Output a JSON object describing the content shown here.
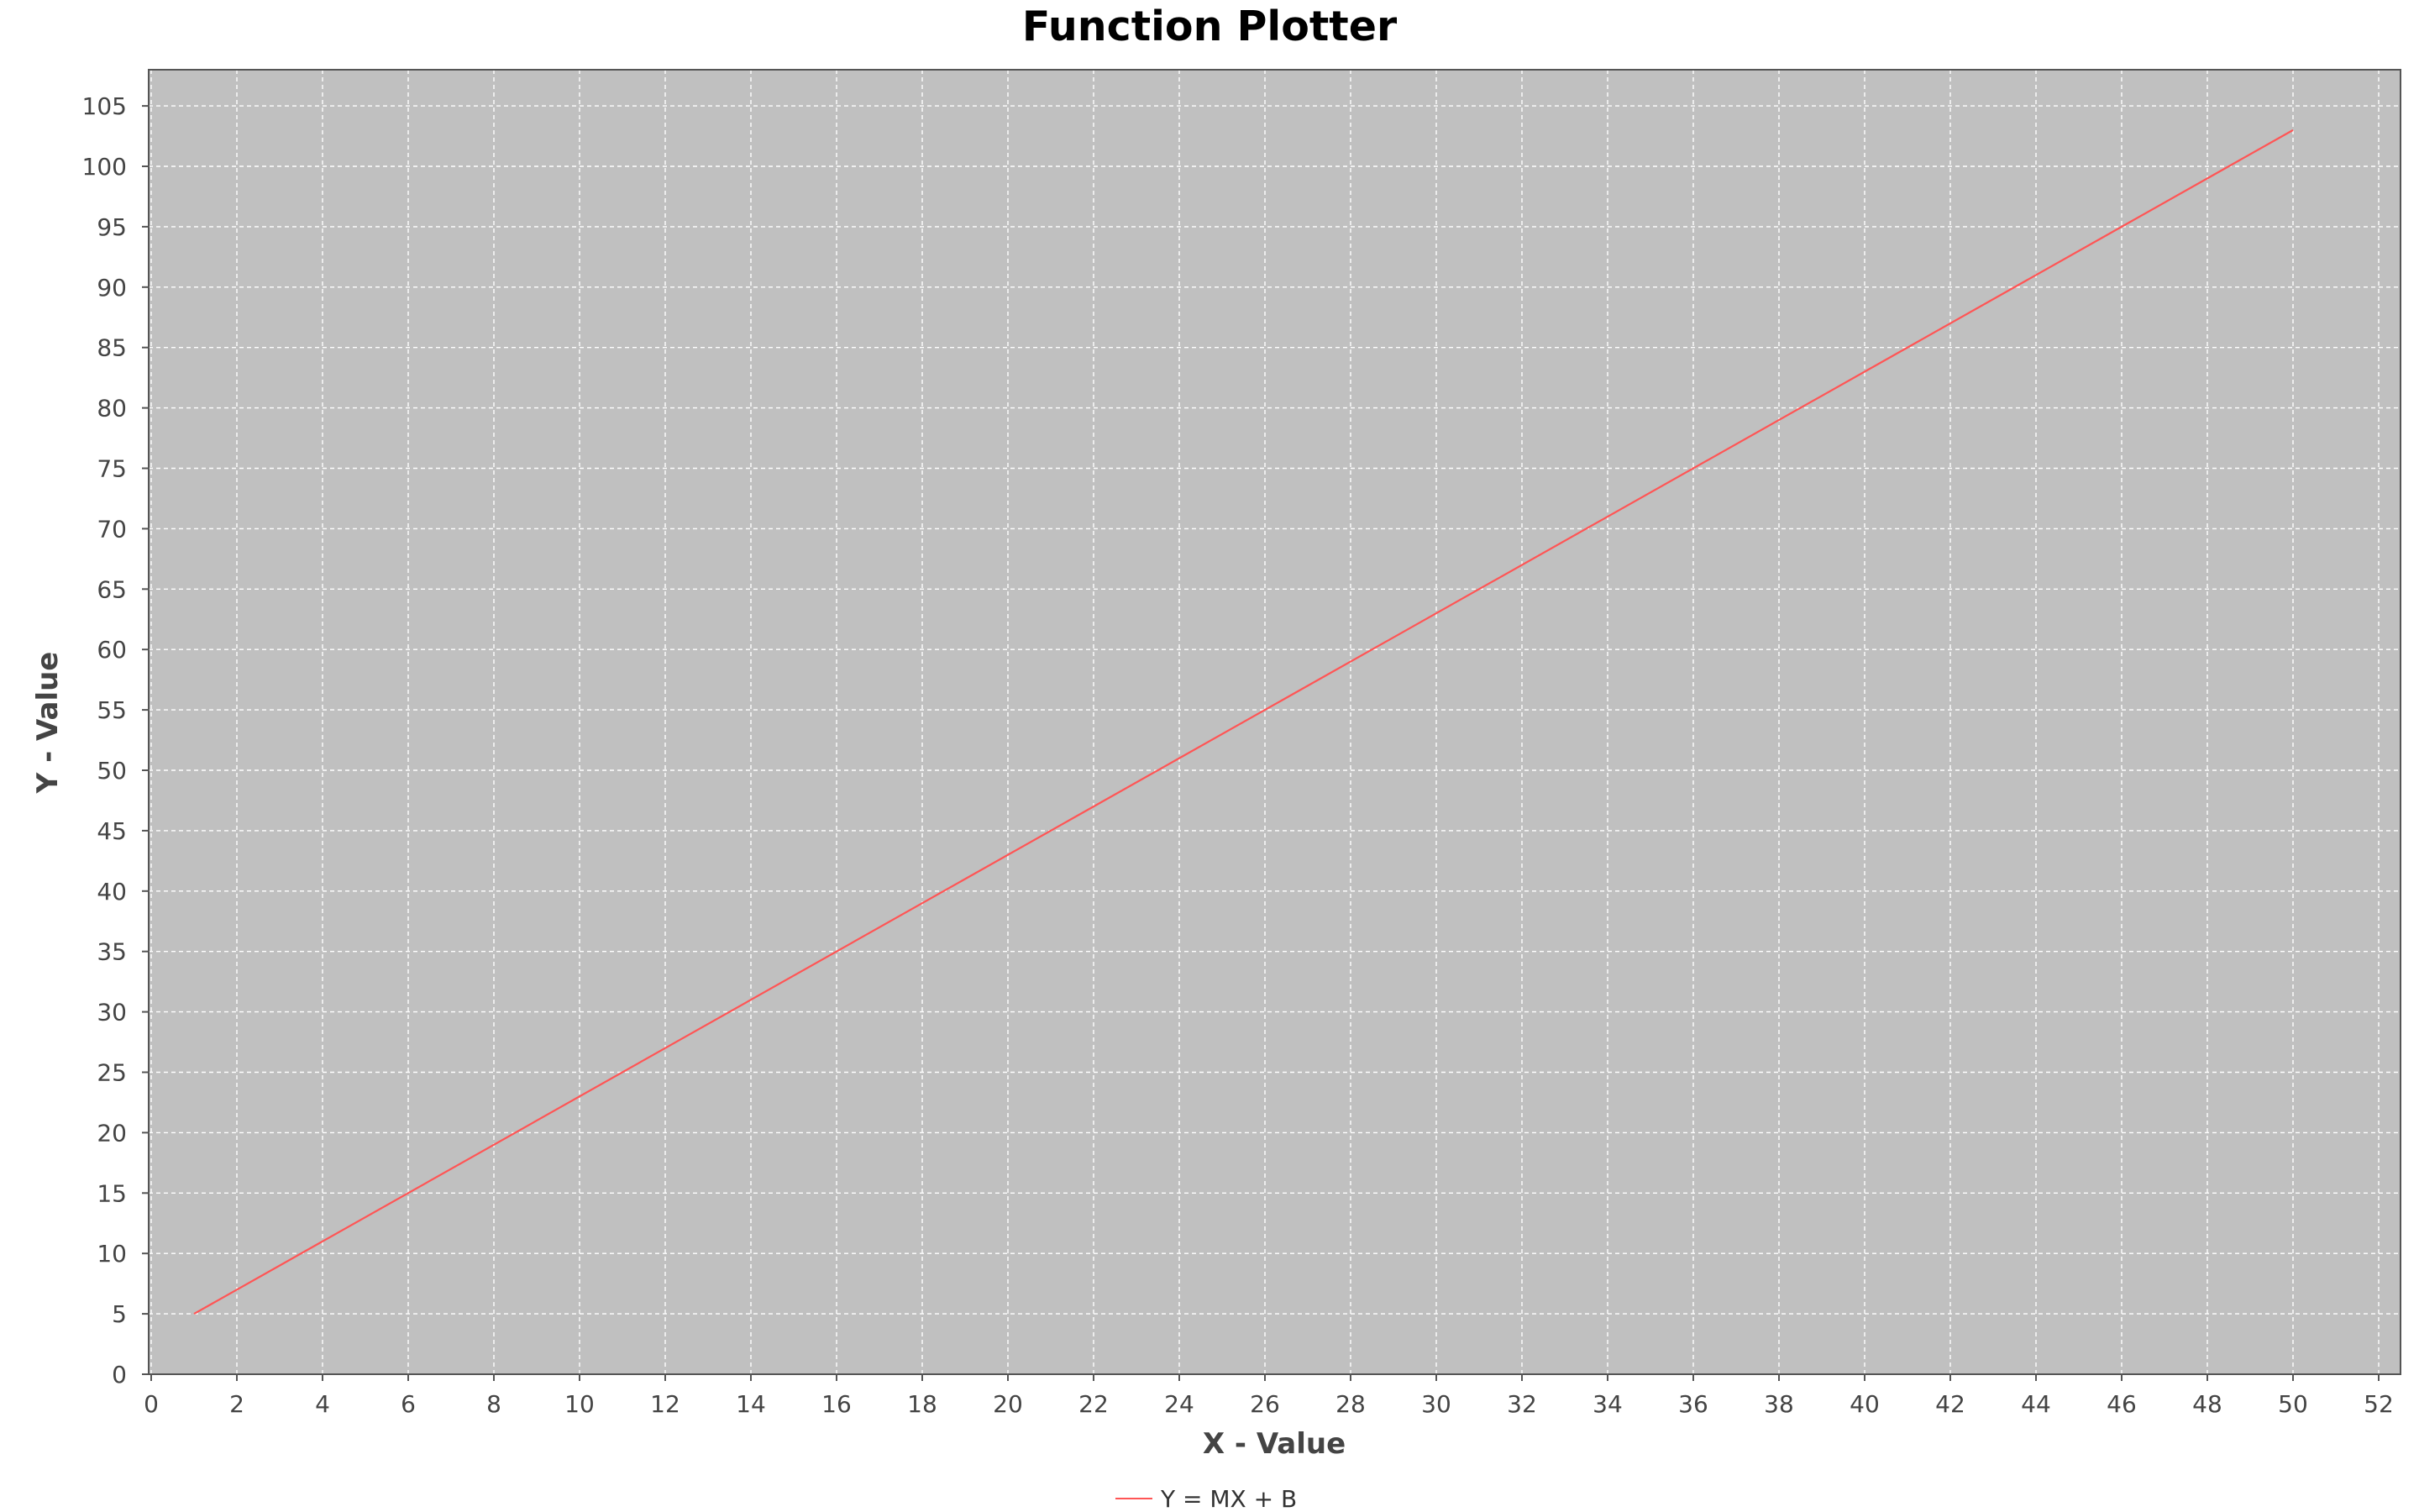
{
  "chart_data": {
    "type": "line",
    "title": "Function Plotter",
    "xlabel": "X - Value",
    "ylabel": "Y - Value",
    "xlim": [
      0,
      53
    ],
    "ylim": [
      0,
      108
    ],
    "x_ticks": [
      0,
      2,
      4,
      6,
      8,
      10,
      12,
      14,
      16,
      18,
      20,
      22,
      24,
      26,
      28,
      30,
      32,
      34,
      36,
      38,
      40,
      42,
      44,
      46,
      48,
      50,
      52
    ],
    "y_ticks": [
      0,
      5,
      10,
      15,
      20,
      25,
      30,
      35,
      40,
      45,
      50,
      55,
      60,
      65,
      70,
      75,
      80,
      85,
      90,
      95,
      100,
      105
    ],
    "grid": true,
    "legend_position": "bottom-center",
    "background_color": "#c0c0c0",
    "series": [
      {
        "name": "Y = MX + B",
        "color": "#ff5555",
        "x": [
          1,
          50
        ],
        "y": [
          5,
          103
        ]
      }
    ]
  }
}
